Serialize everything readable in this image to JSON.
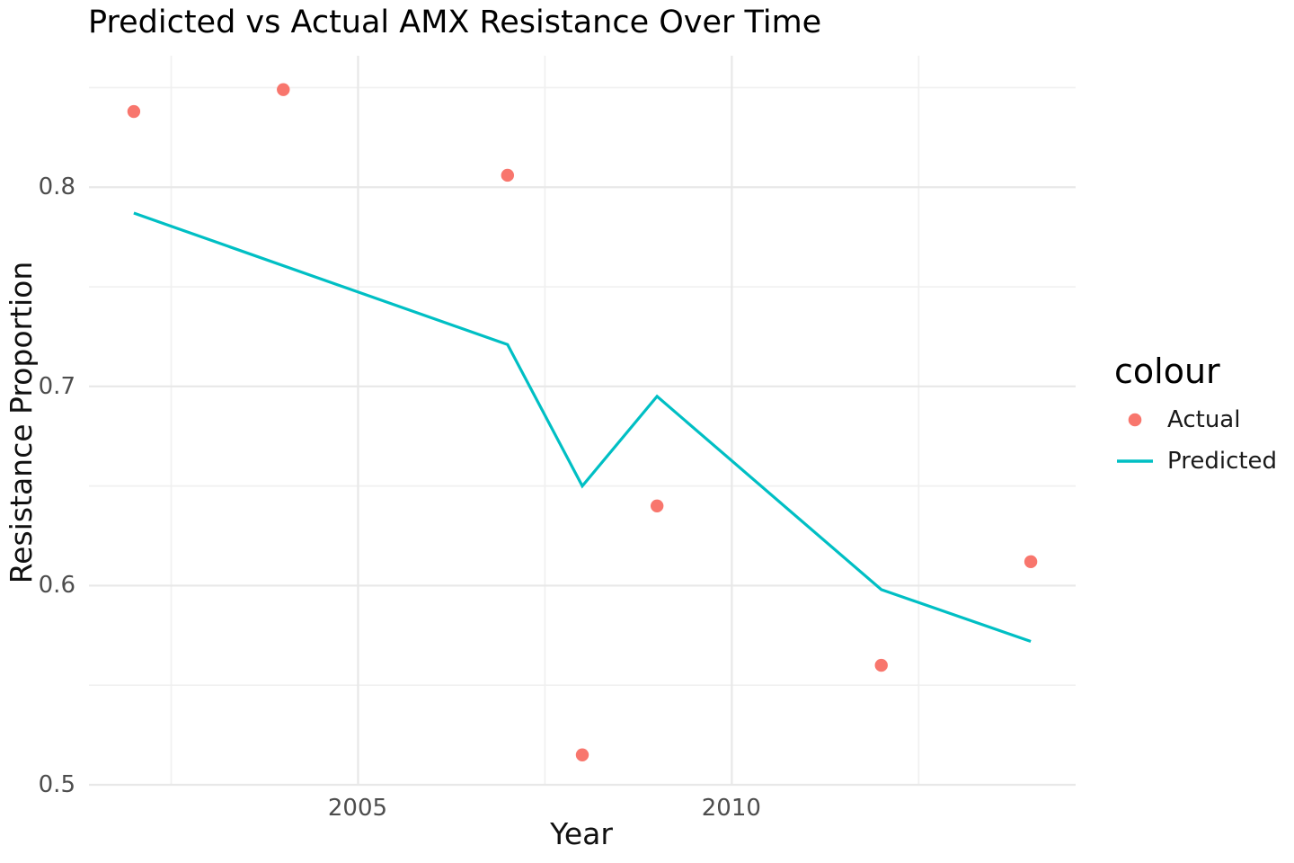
{
  "chart_data": {
    "type": "line",
    "title": "Predicted vs Actual AMX Resistance Over Time",
    "xlabel": "Year",
    "ylabel": "Resistance Proportion",
    "legend": {
      "title": "colour",
      "position": "right"
    },
    "grid": true,
    "xlim": [
      2001.4,
      2014.6
    ],
    "ylim": [
      0.5,
      0.866
    ],
    "x_ticks": {
      "major": [
        2005,
        2010
      ],
      "labels": [
        "2005",
        "2010"
      ],
      "minor": [
        2002.5,
        2007.5,
        2012.5
      ]
    },
    "y_ticks": {
      "major": [
        0.5,
        0.6,
        0.7,
        0.8
      ],
      "labels": [
        "0.5",
        "0.6",
        "0.7",
        "0.8"
      ],
      "minor": [
        0.55,
        0.65,
        0.75,
        0.85
      ]
    },
    "series": [
      {
        "name": "Actual",
        "kind": "scatter",
        "color": "#f8766d",
        "x": [
          2002,
          2004,
          2007,
          2008,
          2009,
          2012,
          2014
        ],
        "y": [
          0.838,
          0.849,
          0.806,
          0.515,
          0.64,
          0.56,
          0.612
        ]
      },
      {
        "name": "Predicted",
        "kind": "line",
        "color": "#00bfc4",
        "x": [
          2002,
          2007,
          2008,
          2009,
          2012,
          2014
        ],
        "y": [
          0.787,
          0.721,
          0.65,
          0.695,
          0.598,
          0.572
        ]
      }
    ],
    "colors": {
      "actual": "#f8766d",
      "predicted": "#00bfc4",
      "grid_major": "#e8e8e8",
      "grid_minor": "#f0f0f0",
      "tick_text": "#4d4d4d"
    }
  }
}
